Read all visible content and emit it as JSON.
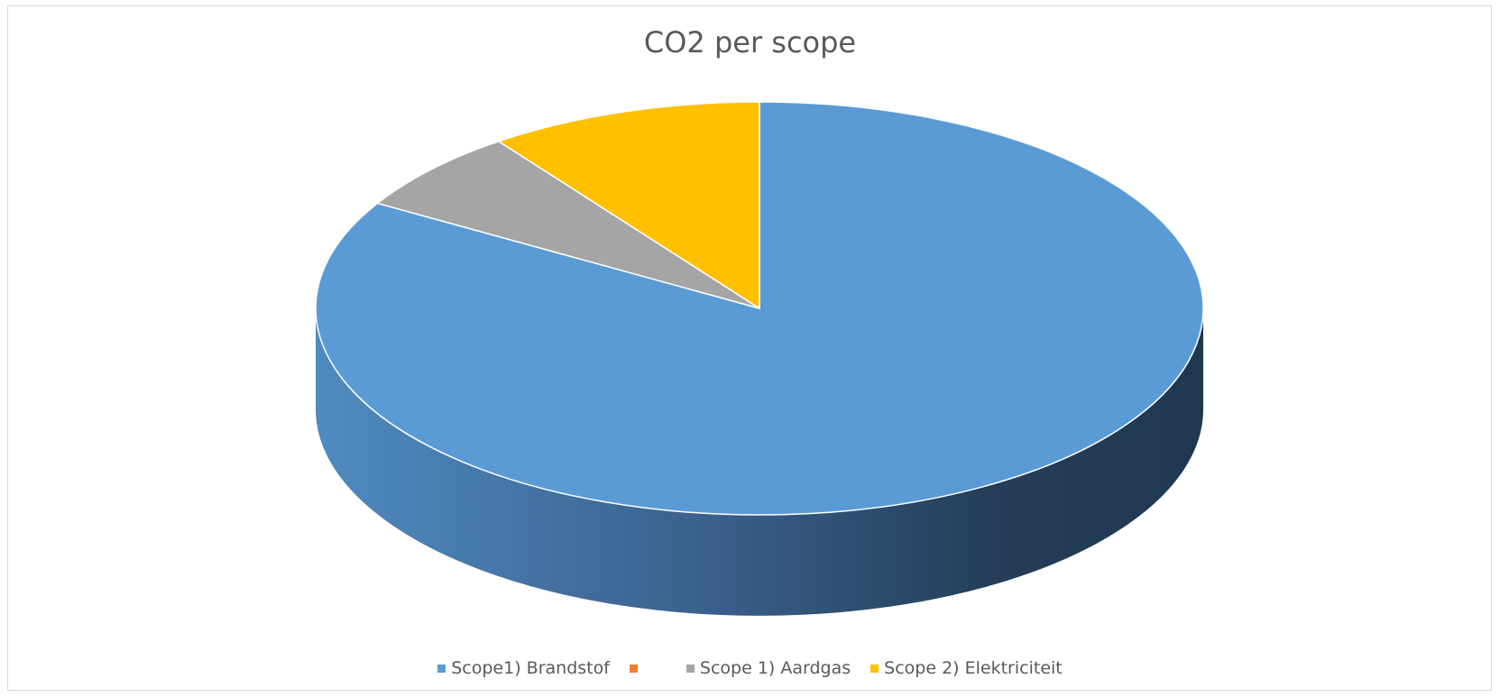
{
  "chart_data": {
    "type": "pie",
    "title": "CO2 per scope",
    "three_d": true,
    "categories": [
      "Scope1) Brandstof",
      "",
      "Scope 1) Aardgas",
      "Scope 2) Elektriciteit"
    ],
    "values": [
      83.5,
      0,
      6.5,
      10
    ],
    "unit": "%",
    "colors": [
      "#5B9BD5",
      "#ED7D31",
      "#A5A5A5",
      "#FFC000"
    ],
    "legend_position": "bottom",
    "start_angle_deg": 0,
    "direction": "clockwise"
  }
}
